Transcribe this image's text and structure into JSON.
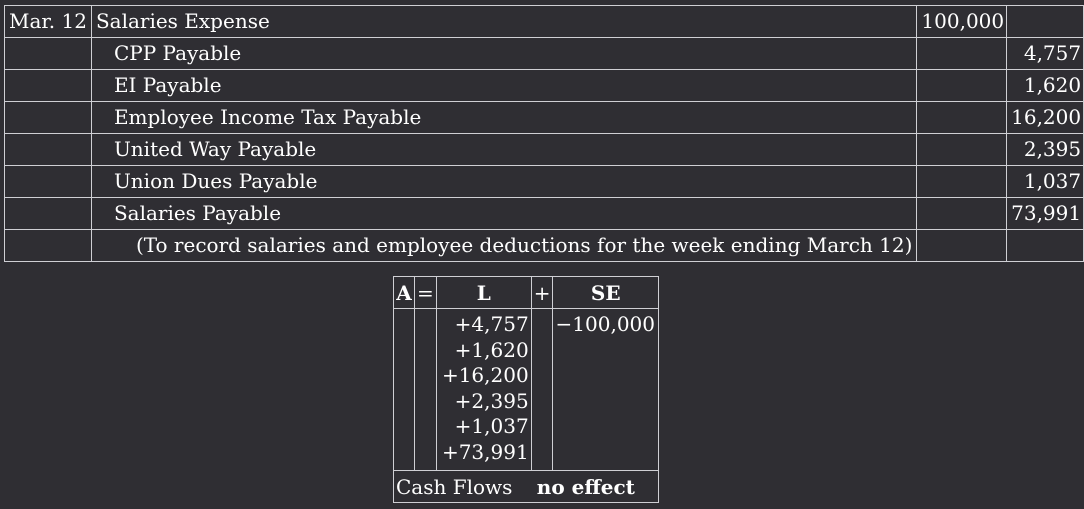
{
  "journal": {
    "date": "Mar. 12",
    "debit_account": "Salaries Expense",
    "debit_amount": "100,000",
    "credits": [
      {
        "account": "CPP Payable",
        "amount": "4,757"
      },
      {
        "account": "EI Payable",
        "amount": "1,620"
      },
      {
        "account": "Employee Income Tax Payable",
        "amount": "16,200"
      },
      {
        "account": "United Way Payable",
        "amount": "2,395"
      },
      {
        "account": "Union Dues Payable",
        "amount": "1,037"
      },
      {
        "account": "Salaries Payable",
        "amount": "73,991"
      }
    ],
    "explanation": "(To record salaries and employee deductions for the week ending March 12)"
  },
  "equation": {
    "a": "A",
    "equals": "=",
    "l": "L",
    "plus": "+",
    "se": "SE",
    "l_values": [
      "+4,757",
      "+1,620",
      "+16,200",
      "+2,395",
      "+1,037",
      "+73,991"
    ],
    "se_value": "−100,000",
    "cash_flows_label": "Cash Flows",
    "cash_flows_value": "no effect"
  }
}
